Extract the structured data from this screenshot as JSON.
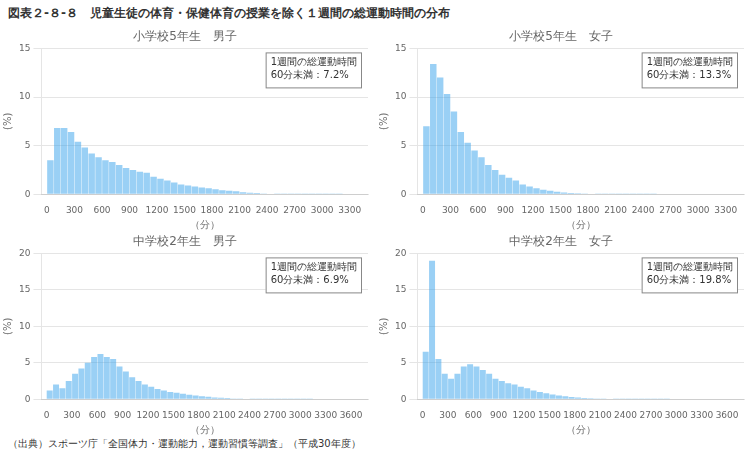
{
  "title": "児童生徒の体育・保健体育の授業を除く１週間の総運動時間の分布",
  "annotations": [
    "図表２-８-８",
    "（出典）スポーツ庁「全国体力・運動能力，運動習慣等調査」（平成30年度）"
  ],
  "chart_data": [
    {
      "type": "histogram",
      "title": "小学校5年生　男子",
      "annotations": [
        "1週間の総運動時間",
        "60分未満：7.2%"
      ],
      "xlabel": "（分）",
      "ylabel": "(%)",
      "bins": [
        0,
        75,
        150,
        225,
        300,
        375,
        450,
        525,
        600,
        675,
        750,
        825,
        900,
        975,
        1050,
        1125,
        1200,
        1275,
        1350,
        1425,
        1500,
        1575,
        1650,
        1725,
        1800,
        1875,
        1950,
        2025,
        2100,
        2175,
        2250,
        2325,
        2400,
        2475,
        2550,
        2625,
        2700,
        2775,
        2850,
        2925,
        3000,
        3075,
        3150,
        3225,
        3300
      ],
      "values": [
        3.5,
        6.8,
        6.8,
        6.4,
        5.4,
        4.8,
        4.2,
        3.8,
        3.5,
        3.3,
        3.0,
        2.7,
        2.5,
        2.3,
        2.2,
        1.8,
        1.6,
        1.4,
        1.2,
        1.0,
        0.9,
        0.8,
        0.7,
        0.6,
        0.5,
        0.4,
        0.35,
        0.3,
        0.2,
        0.15,
        0.12,
        0.08,
        0.05,
        0.03,
        0.02,
        0.01,
        0.01,
        0.005,
        0.005,
        0.003,
        0.002,
        0.001,
        0.001,
        0.0
      ],
      "xlim": [
        -60,
        3500
      ],
      "xticks": [
        0,
        300,
        600,
        900,
        1200,
        1500,
        1800,
        2100,
        2400,
        2700,
        3000,
        3300
      ],
      "ylim": [
        0,
        15
      ],
      "yticks": [
        0,
        5,
        10,
        15
      ],
      "grid": "y"
    },
    {
      "type": "histogram",
      "title": "小学校5年生　女子",
      "annotations": [
        "1週間の総運動時間",
        "60分未満：13.3%"
      ],
      "xlabel": "（分）",
      "ylabel": "(%)",
      "bins": [
        0,
        75,
        150,
        225,
        300,
        375,
        450,
        525,
        600,
        675,
        750,
        825,
        900,
        975,
        1050,
        1125,
        1200,
        1275,
        1350,
        1425,
        1500,
        1575,
        1650,
        1725,
        1800,
        1875,
        1950,
        2025,
        2100,
        2175,
        2250,
        2325,
        2400,
        2475,
        2550,
        2625,
        2700,
        2775,
        2850,
        2925,
        3000,
        3075,
        3150,
        3225,
        3300
      ],
      "values": [
        7.0,
        13.4,
        12.0,
        10.3,
        8.5,
        6.4,
        5.3,
        4.5,
        3.8,
        3.0,
        2.5,
        2.0,
        1.7,
        1.4,
        1.0,
        0.8,
        0.6,
        0.45,
        0.35,
        0.25,
        0.18,
        0.13,
        0.09,
        0.06,
        0.04,
        0.02,
        0.015,
        0.01,
        0.007,
        0.005,
        0.003,
        0.002,
        0.001,
        0.001,
        0.0,
        0.0,
        0.0,
        0.0,
        0.0,
        0.0,
        0.0,
        0.0,
        0.0,
        0.0
      ],
      "xlim": [
        -60,
        3500
      ],
      "xticks": [
        0,
        300,
        600,
        900,
        1200,
        1500,
        1800,
        2100,
        2400,
        2700,
        3000,
        3300
      ],
      "ylim": [
        0,
        15
      ],
      "yticks": [
        0,
        5,
        10,
        15
      ],
      "grid": "y"
    },
    {
      "type": "histogram",
      "title": "中学校2年生　男子",
      "annotations": [
        "1週間の総運動時間",
        "60分未満：6.9%"
      ],
      "xlabel": "（分）",
      "ylabel": "(%)",
      "bins": [
        0,
        75,
        150,
        225,
        300,
        375,
        450,
        525,
        600,
        675,
        750,
        825,
        900,
        975,
        1050,
        1125,
        1200,
        1275,
        1350,
        1425,
        1500,
        1575,
        1650,
        1725,
        1800,
        1875,
        1950,
        2025,
        2100,
        2175,
        2250,
        2325,
        2400,
        2475,
        2550,
        2625,
        2700,
        2775,
        2850,
        2925,
        3000,
        3075,
        3150,
        3225,
        3300,
        3375,
        3450,
        3525,
        3600
      ],
      "values": [
        1.2,
        2.0,
        1.5,
        2.5,
        3.5,
        4.2,
        5.0,
        5.8,
        6.2,
        5.8,
        5.5,
        4.5,
        3.8,
        3.0,
        2.5,
        2.0,
        1.7,
        1.4,
        1.2,
        1.0,
        0.9,
        0.75,
        0.6,
        0.5,
        0.4,
        0.35,
        0.25,
        0.2,
        0.15,
        0.1,
        0.08,
        0.06,
        0.04,
        0.03,
        0.02,
        0.01,
        0.008,
        0.005,
        0.003,
        0.002,
        0.001,
        0.001,
        0.0,
        0.0,
        0.0,
        0.0,
        0.0,
        0.0
      ],
      "xlim": [
        -60,
        3800
      ],
      "xticks": [
        0,
        300,
        600,
        900,
        1200,
        1500,
        1800,
        2100,
        2400,
        2700,
        3000,
        3300,
        3600
      ],
      "ylim": [
        0,
        20
      ],
      "yticks": [
        0,
        5,
        10,
        15,
        20
      ],
      "grid": "y"
    },
    {
      "type": "histogram",
      "title": "中学校2年生　女子",
      "annotations": [
        "1週間の総運動時間",
        "60分未満：19.8%"
      ],
      "xlabel": "（分）",
      "ylabel": "(%)",
      "bins": [
        0,
        75,
        150,
        225,
        300,
        375,
        450,
        525,
        600,
        675,
        750,
        825,
        900,
        975,
        1050,
        1125,
        1200,
        1275,
        1350,
        1425,
        1500,
        1575,
        1650,
        1725,
        1800,
        1875,
        1950,
        2025,
        2100,
        2175,
        2250,
        2325,
        2400,
        2475,
        2550,
        2625,
        2700,
        2775,
        2850,
        2925,
        3000,
        3075,
        3150,
        3225,
        3300,
        3375,
        3450,
        3525,
        3600
      ],
      "values": [
        6.5,
        19.0,
        5.5,
        3.5,
        2.8,
        3.5,
        4.5,
        4.8,
        4.5,
        4.0,
        3.5,
        2.8,
        2.5,
        2.2,
        2.0,
        1.7,
        1.5,
        1.2,
        1.0,
        0.8,
        0.65,
        0.5,
        0.4,
        0.3,
        0.25,
        0.18,
        0.14,
        0.1,
        0.08,
        0.05,
        0.03,
        0.02,
        0.01,
        0.008,
        0.005,
        0.003,
        0.002,
        0.001,
        0.001,
        0.0,
        0.0,
        0.0,
        0.0,
        0.0,
        0.0,
        0.0,
        0.0,
        0.0
      ],
      "xlim": [
        -60,
        3800
      ],
      "xticks": [
        0,
        300,
        600,
        900,
        1200,
        1500,
        1800,
        2100,
        2400,
        2700,
        3000,
        3300,
        3600
      ],
      "ylim": [
        0,
        20
      ],
      "yticks": [
        0,
        5,
        10,
        15,
        20
      ],
      "grid": "y"
    }
  ]
}
